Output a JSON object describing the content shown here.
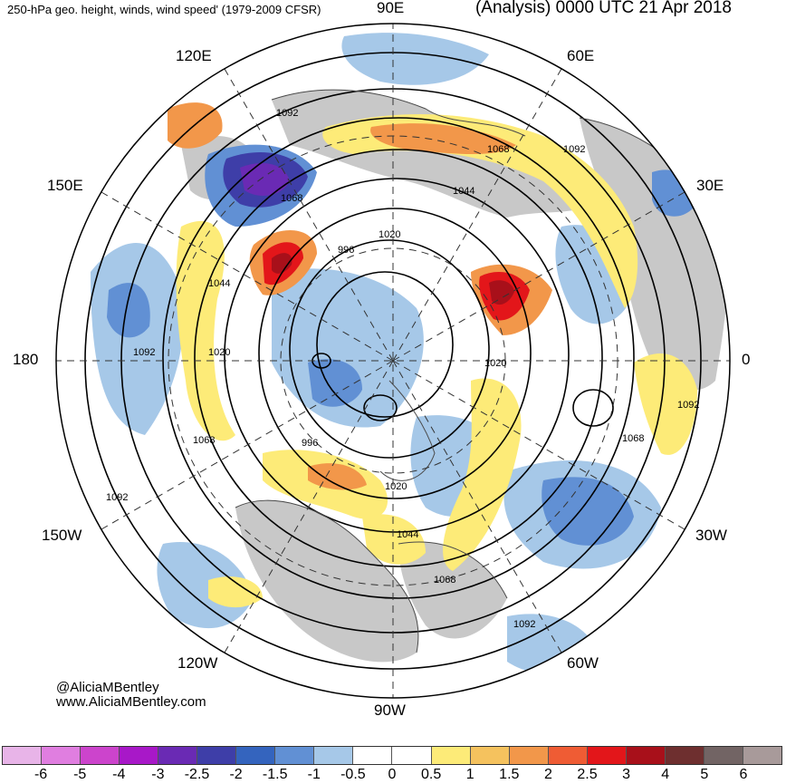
{
  "header": {
    "title_left": "250-hPa geo. height, winds, wind speed' (1979-2009 CFSR)",
    "title_right": "(Analysis) 0000 UTC 21 Apr 2018"
  },
  "credits": {
    "handle": "@AliciaMBentley",
    "website": "www.AliciaMBentley.com"
  },
  "longitude_labels": [
    "90E",
    "60E",
    "30E",
    "0",
    "30W",
    "60W",
    "90W",
    "120W",
    "150W",
    "180",
    "150E",
    "120E"
  ],
  "contour_labels": [
    "1092",
    "1068",
    "1044",
    "1020",
    "996",
    "1092",
    "1068",
    "1044",
    "1020",
    "996",
    "1020",
    "1092",
    "1068",
    "1044",
    "1068",
    "1092",
    "1092",
    "1020",
    "1068",
    "1092"
  ],
  "colorbar": {
    "tick_labels": [
      "-6",
      "-5",
      "-4",
      "-3",
      "-2.5",
      "-2",
      "-1.5",
      "-1",
      "-0.5",
      "0",
      "0.5",
      "1",
      "1.5",
      "2",
      "2.5",
      "3",
      "4",
      "5",
      "6"
    ],
    "colors": [
      "#e8b4e8",
      "#e07ee0",
      "#cc44cc",
      "#a818c8",
      "#6a2ab4",
      "#3e3ea8",
      "#3464be",
      "#6190d4",
      "#a6c8e8",
      "#ffffff",
      "#ffffff",
      "#fdeb78",
      "#f5c25e",
      "#f2974a",
      "#ef5c34",
      "#e3161a",
      "#a8101a",
      "#6e2f2f",
      "#726464",
      "#a89a9a"
    ]
  },
  "map": {
    "colors": {
      "ocean_bg": "#ffffff",
      "land": "#c8c8c8",
      "contour": "#000000",
      "coast": "#4a4a4a"
    }
  }
}
